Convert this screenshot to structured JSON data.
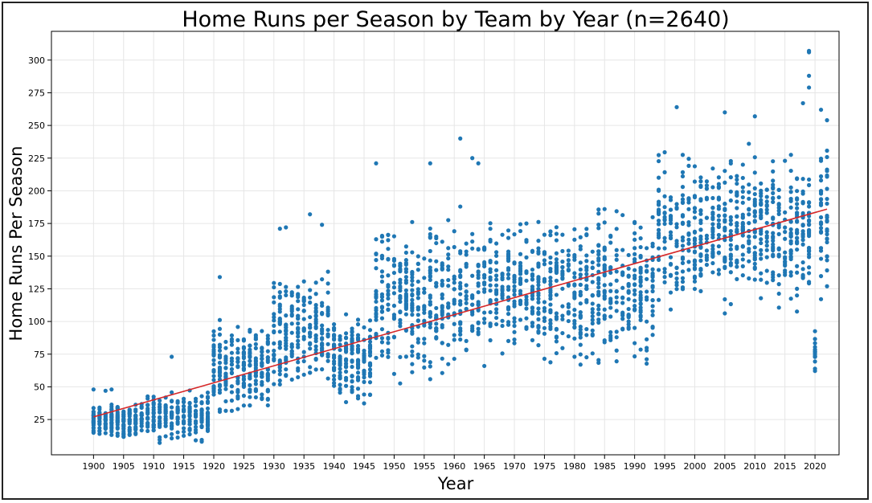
{
  "chart_data": {
    "type": "scatter",
    "title": "Home Runs per Season by Team by Year (n=2640)",
    "xlabel": "Year",
    "ylabel": "Home Runs Per Season",
    "xlim": [
      1893,
      2024
    ],
    "ylim": [
      -2,
      322
    ],
    "x_ticks": [
      "1900",
      "1905",
      "1910",
      "1915",
      "1920",
      "1925",
      "1930",
      "1935",
      "1940",
      "1945",
      "1950",
      "1955",
      "1960",
      "1965",
      "1970",
      "1975",
      "1980",
      "1985",
      "1990",
      "1995",
      "2000",
      "2005",
      "2010",
      "2015",
      "2020"
    ],
    "y_ticks": [
      "25",
      "50",
      "75",
      "100",
      "125",
      "150",
      "175",
      "200",
      "225",
      "250",
      "275",
      "300"
    ],
    "grid": true,
    "point_color": "#1f77b4",
    "trend_color": "#d62728",
    "trend_line": {
      "x": [
        1900,
        2022
      ],
      "y": [
        27,
        186
      ]
    },
    "series": [
      {
        "year_groups": [
          {
            "start": 1900,
            "end": 1908,
            "lo": 8,
            "hi": 40
          },
          {
            "start": 1909,
            "end": 1919,
            "lo": 6,
            "hi": 50
          },
          {
            "start": 1920,
            "end": 1929,
            "lo": 18,
            "hi": 110
          },
          {
            "start": 1930,
            "end": 1939,
            "lo": 28,
            "hi": 150
          },
          {
            "start": 1940,
            "end": 1946,
            "lo": 25,
            "hi": 120
          },
          {
            "start": 1947,
            "end": 1960,
            "lo": 45,
            "hi": 190
          },
          {
            "start": 1961,
            "end": 1976,
            "lo": 55,
            "hi": 195
          },
          {
            "start": 1977,
            "end": 1993,
            "lo": 50,
            "hi": 200
          },
          {
            "start": 1994,
            "end": 2008,
            "lo": 100,
            "hi": 245
          },
          {
            "start": 2009,
            "end": 2019,
            "lo": 95,
            "hi": 240
          },
          {
            "start": 2020,
            "end": 2020,
            "lo": 50,
            "hi": 98
          },
          {
            "start": 2021,
            "end": 2022,
            "lo": 110,
            "hi": 255
          }
        ],
        "outliers": [
          {
            "x": 1900,
            "y": 48
          },
          {
            "x": 1902,
            "y": 47
          },
          {
            "x": 1903,
            "y": 48
          },
          {
            "x": 1913,
            "y": 73
          },
          {
            "x": 1921,
            "y": 134
          },
          {
            "x": 1931,
            "y": 171
          },
          {
            "x": 1932,
            "y": 172
          },
          {
            "x": 1936,
            "y": 182
          },
          {
            "x": 1938,
            "y": 174
          },
          {
            "x": 1947,
            "y": 221
          },
          {
            "x": 1956,
            "y": 221
          },
          {
            "x": 1961,
            "y": 240
          },
          {
            "x": 1963,
            "y": 225
          },
          {
            "x": 1964,
            "y": 221
          },
          {
            "x": 1997,
            "y": 264
          },
          {
            "x": 2005,
            "y": 260
          },
          {
            "x": 2010,
            "y": 257
          },
          {
            "x": 2018,
            "y": 267
          },
          {
            "x": 2019,
            "y": 307
          },
          {
            "x": 2019,
            "y": 306
          },
          {
            "x": 2019,
            "y": 288
          },
          {
            "x": 2019,
            "y": 279
          },
          {
            "x": 2021,
            "y": 262
          },
          {
            "x": 2022,
            "y": 254
          }
        ]
      }
    ]
  }
}
